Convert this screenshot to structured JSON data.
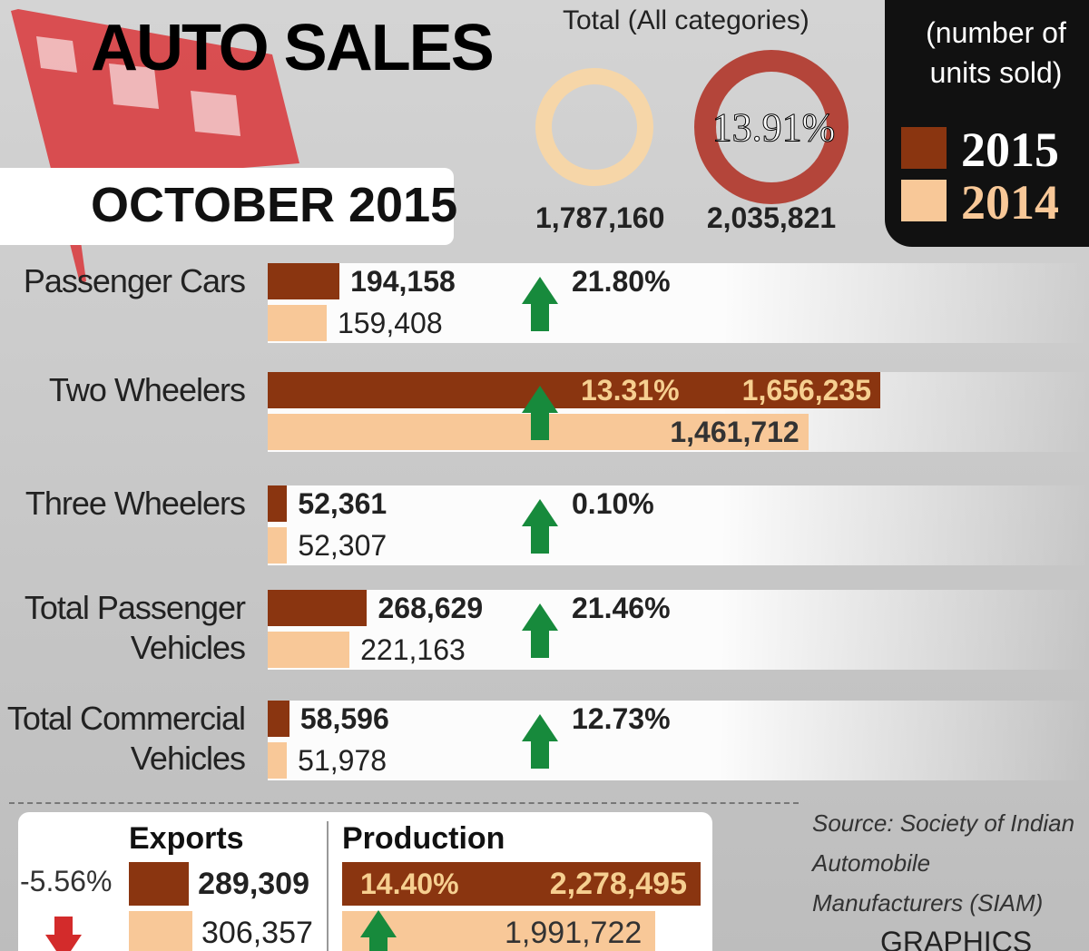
{
  "header": {
    "title": "AUTO SALES",
    "subtitle": "OCTOBER 2015"
  },
  "totals": {
    "title": "Total (All categories)",
    "values": [
      1787160,
      2035821
    ],
    "value_labels": [
      "1,787,160",
      "2,035,821"
    ],
    "change": "13.91%"
  },
  "legend": {
    "title": "(number of units sold)"
  },
  "chart_data": {
    "type": "bar",
    "orientation": "horizontal",
    "categories": [
      "Passenger Cars",
      "Two Wheelers",
      "Three Wheelers",
      "Total Passenger Vehicles",
      "Total Commercial Vehicles"
    ],
    "series": [
      {
        "name": "2015",
        "color": "#8a3510",
        "values": [
          194158,
          1656235,
          52361,
          268629,
          58596
        ],
        "value_labels": [
          "194,158",
          "1,656,235",
          "52,361",
          "268,629",
          "58,596"
        ]
      },
      {
        "name": "2014",
        "color": "#f8c898",
        "values": [
          159408,
          1461712,
          52307,
          221163,
          51978
        ],
        "value_labels": [
          "159,408",
          "1,461,712",
          "52,307",
          "221,163",
          "51,978"
        ]
      }
    ],
    "changes": [
      "21.80%",
      "13.31%",
      "0.10%",
      "21.46%",
      "12.73%"
    ]
  },
  "exports": {
    "title": "Exports",
    "change": "-5.56%",
    "values": [
      289309,
      306357
    ],
    "value_labels": [
      "289,309",
      "306,357"
    ]
  },
  "production": {
    "title": "Production",
    "change": "14.40%",
    "values": [
      2278495,
      1991722
    ],
    "value_labels": [
      "2,278,495",
      "1,991,722"
    ]
  },
  "source": "Source: Society of Indian Automobile Manufacturers (SIAM)",
  "credit": "GRAPHICS"
}
